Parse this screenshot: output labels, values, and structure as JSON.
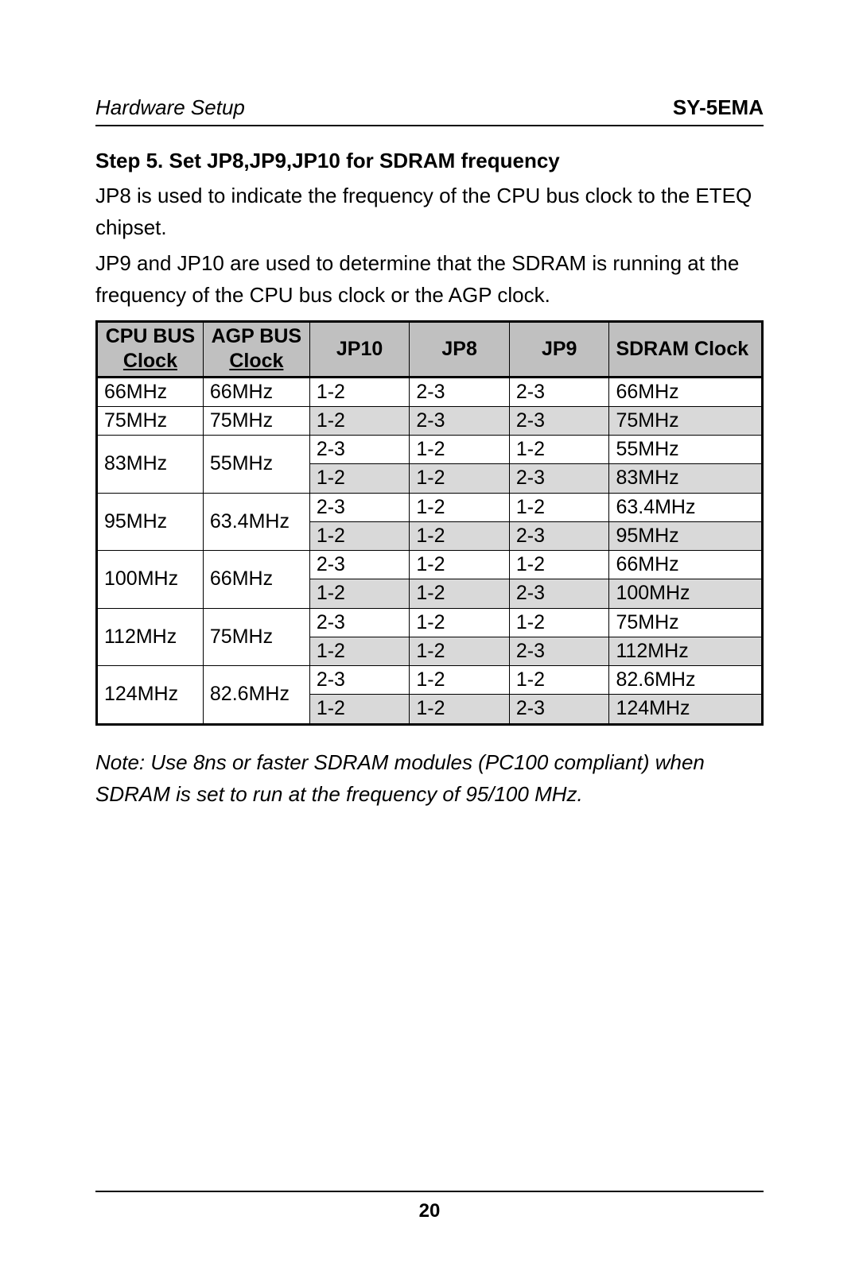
{
  "header": {
    "left": "Hardware Setup",
    "right": "SY-5EMA"
  },
  "step_title": "Step 5.    Set JP8,JP9,JP10 for SDRAM frequency",
  "para1": "JP8 is used to indicate the frequency of the CPU bus clock to the ETEQ chipset.",
  "para2": "JP9 and JP10 are used to determine that the SDRAM is running at the frequency of the CPU bus clock or the AGP clock.",
  "table": {
    "columns_line1": [
      "CPU BUS",
      "AGP BUS",
      "JP10",
      "JP8",
      "JP9",
      "SDRAM Clock"
    ],
    "columns_line2": [
      "Clock",
      "Clock",
      "",
      "",
      "",
      ""
    ],
    "groups": [
      {
        "cpu": "66MHz",
        "agp": "66MHz",
        "rows": [
          {
            "jp10": "1-2",
            "jp8": "2-3",
            "jp9": "2-3",
            "sdram": "66MHz",
            "shaded": false
          }
        ]
      },
      {
        "cpu": "75MHz",
        "agp": "75MHz",
        "rows": [
          {
            "jp10": "1-2",
            "jp8": "2-3",
            "jp9": "2-3",
            "sdram": "75MHz",
            "shaded": true
          }
        ]
      },
      {
        "cpu": "83MHz",
        "agp": "55MHz",
        "rows": [
          {
            "jp10": "2-3",
            "jp8": "1-2",
            "jp9": "1-2",
            "sdram": "55MHz",
            "shaded": false
          },
          {
            "jp10": "1-2",
            "jp8": "1-2",
            "jp9": "2-3",
            "sdram": "83MHz",
            "shaded": true
          }
        ]
      },
      {
        "cpu": "95MHz",
        "agp": "63.4MHz",
        "rows": [
          {
            "jp10": "2-3",
            "jp8": "1-2",
            "jp9": "1-2",
            "sdram": "63.4MHz",
            "shaded": false
          },
          {
            "jp10": "1-2",
            "jp8": "1-2",
            "jp9": "2-3",
            "sdram": "95MHz",
            "shaded": true
          }
        ]
      },
      {
        "cpu": "100MHz",
        "agp": "66MHz",
        "rows": [
          {
            "jp10": "2-3",
            "jp8": "1-2",
            "jp9": "1-2",
            "sdram": "66MHz",
            "shaded": false
          },
          {
            "jp10": "1-2",
            "jp8": "1-2",
            "jp9": "2-3",
            "sdram": "100MHz",
            "shaded": true
          }
        ]
      },
      {
        "cpu": "112MHz",
        "agp": "75MHz",
        "rows": [
          {
            "jp10": "2-3",
            "jp8": "1-2",
            "jp9": "1-2",
            "sdram": "75MHz",
            "shaded": false
          },
          {
            "jp10": "1-2",
            "jp8": "1-2",
            "jp9": "2-3",
            "sdram": "112MHz",
            "shaded": true
          }
        ]
      },
      {
        "cpu": "124MHz",
        "agp": "82.6MHz",
        "rows": [
          {
            "jp10": "2-3",
            "jp8": "1-2",
            "jp9": "1-2",
            "sdram": "82.6MHz",
            "shaded": false
          },
          {
            "jp10": "1-2",
            "jp8": "1-2",
            "jp9": "2-3",
            "sdram": "124MHz",
            "shaded": true
          }
        ]
      }
    ]
  },
  "note": "Note: Use 8ns or faster SDRAM modules (PC100 compliant) when SDRAM is set to run at the frequency of 95/100 MHz.",
  "page_number": "20",
  "colors": {
    "header_bg": "#c0c0c0",
    "shaded_row_bg": "#d9d9d9",
    "text": "#000000",
    "background": "#ffffff"
  },
  "typography": {
    "body_fontsize_pt": 20,
    "header_fontsize_pt": 20,
    "table_fontsize_pt": 19
  }
}
